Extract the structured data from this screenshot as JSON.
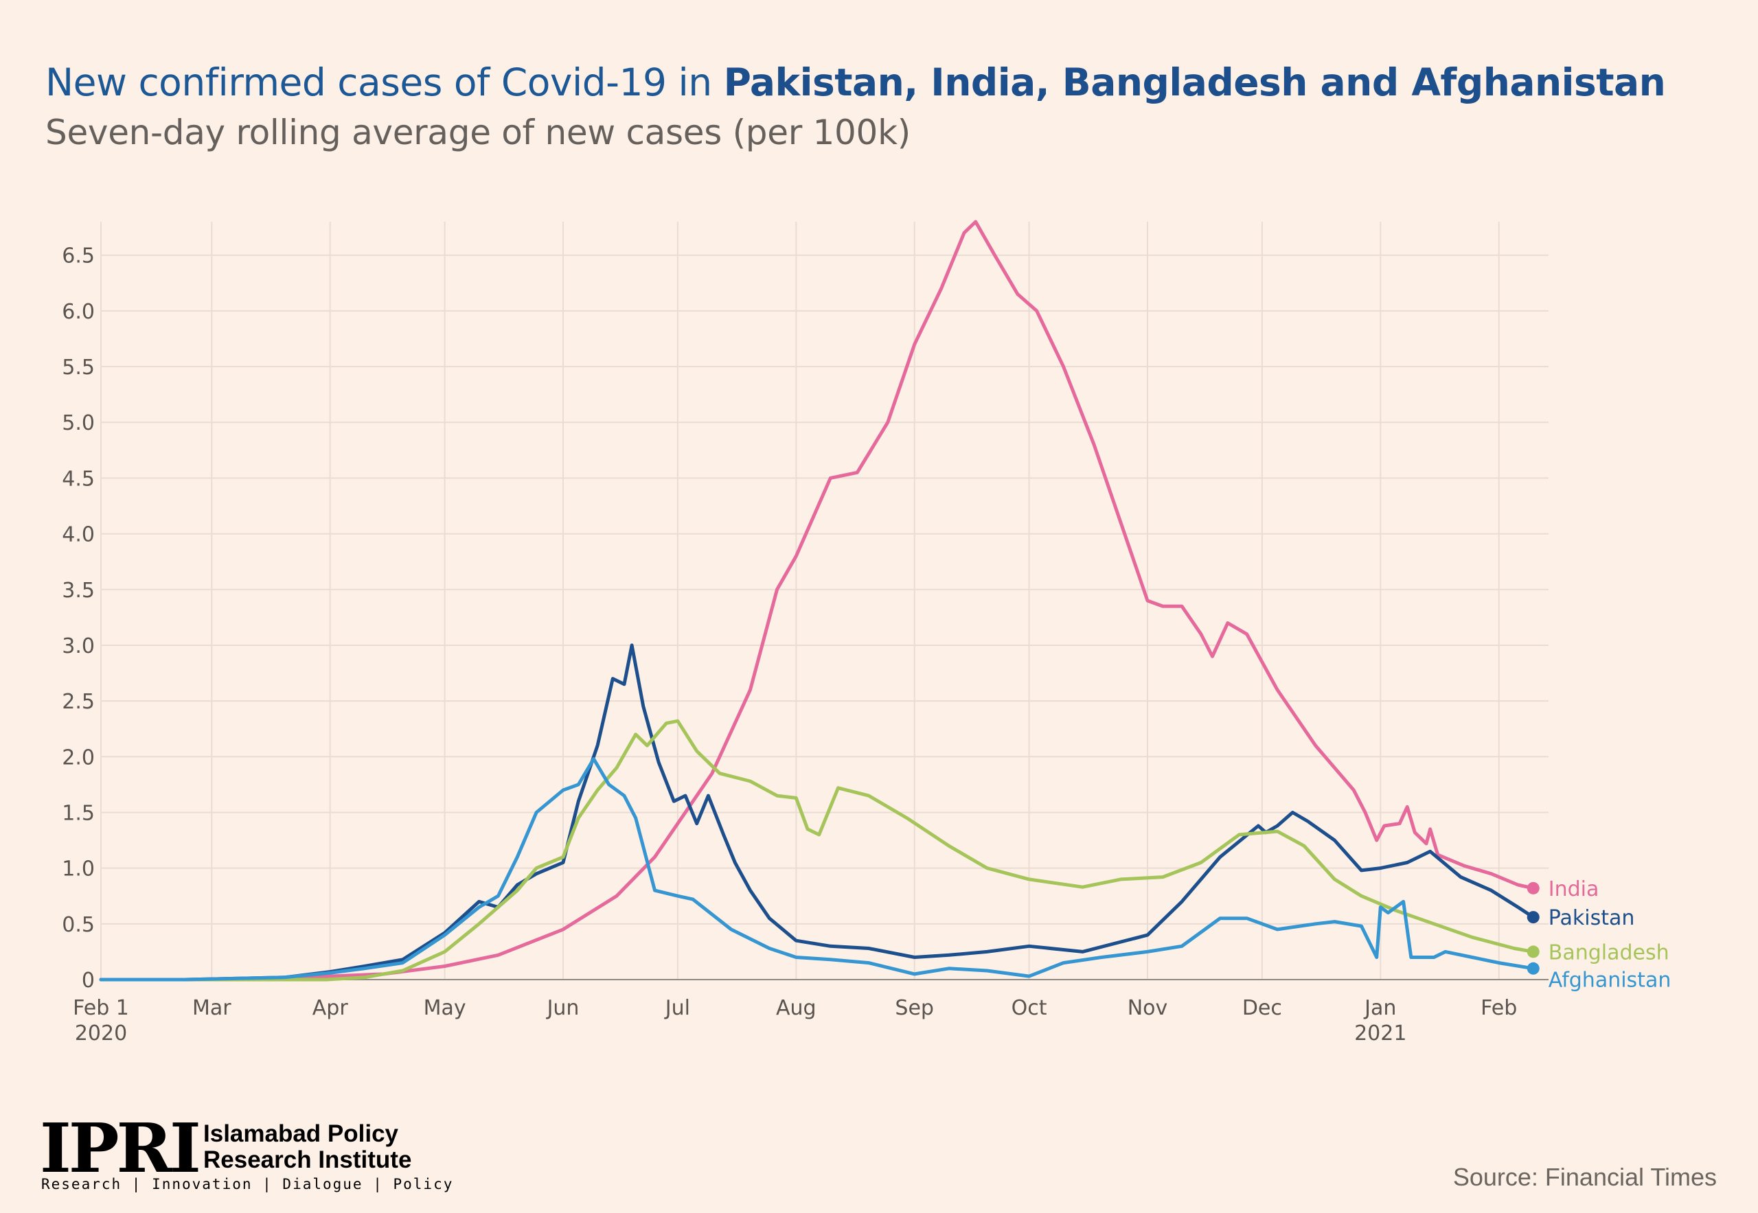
{
  "header": {
    "title_prefix": "New confirmed cases of Covid-19 in ",
    "title_highlight": "Pakistan, India, Bangladesh and Afghanistan",
    "subtitle": "Seven-day rolling average of new cases (per 100k)"
  },
  "footer": {
    "logo_mark": "IPRI",
    "logo_name_line1": "Islamabad Policy",
    "logo_name_line2": "Research Institute",
    "logo_tagline": "Research | Innovation | Dialogue | Policy",
    "source": "Source: Financial Times"
  },
  "chart_data": {
    "type": "line",
    "title": "New confirmed cases of Covid-19 in Pakistan, India, Bangladesh and Afghanistan",
    "subtitle": "Seven-day rolling average of new cases (per 100k)",
    "xlabel": "",
    "ylabel": "",
    "x_start": "2020-02-01",
    "x_end": "2021-02-14",
    "ylim": [
      0,
      6.8
    ],
    "y_ticks": [
      0,
      0.5,
      1.0,
      1.5,
      2.0,
      2.5,
      3.0,
      3.5,
      4.0,
      4.5,
      5.0,
      5.5,
      6.0,
      6.5
    ],
    "y_tick_labels": [
      "0",
      "0.5",
      "1.0",
      "1.5",
      "2.0",
      "2.5",
      "3.0",
      "3.5",
      "4.0",
      "4.5",
      "5.0",
      "5.5",
      "6.0",
      "6.5"
    ],
    "x_ticks": [
      {
        "date": "2020-02-01",
        "label": "Feb 1",
        "sublabel": "2020"
      },
      {
        "date": "2020-03-01",
        "label": "Mar",
        "sublabel": ""
      },
      {
        "date": "2020-04-01",
        "label": "Apr",
        "sublabel": ""
      },
      {
        "date": "2020-05-01",
        "label": "May",
        "sublabel": ""
      },
      {
        "date": "2020-06-01",
        "label": "Jun",
        "sublabel": ""
      },
      {
        "date": "2020-07-01",
        "label": "Jul",
        "sublabel": ""
      },
      {
        "date": "2020-08-01",
        "label": "Aug",
        "sublabel": ""
      },
      {
        "date": "2020-09-01",
        "label": "Sep",
        "sublabel": ""
      },
      {
        "date": "2020-10-01",
        "label": "Oct",
        "sublabel": ""
      },
      {
        "date": "2020-11-01",
        "label": "Nov",
        "sublabel": ""
      },
      {
        "date": "2020-12-01",
        "label": "Dec",
        "sublabel": ""
      },
      {
        "date": "2021-01-01",
        "label": "Jan",
        "sublabel": "2021"
      },
      {
        "date": "2021-02-01",
        "label": "Feb",
        "sublabel": ""
      }
    ],
    "grid": true,
    "legend": "end-of-line labels (right)",
    "series": [
      {
        "name": "India",
        "color": "#e5699a",
        "points": [
          [
            "2020-02-01",
            0
          ],
          [
            "2020-02-23",
            0
          ],
          [
            "2020-03-20",
            0
          ],
          [
            "2020-04-01",
            0.03
          ],
          [
            "2020-04-15",
            0.05
          ],
          [
            "2020-05-01",
            0.12
          ],
          [
            "2020-05-15",
            0.22
          ],
          [
            "2020-06-01",
            0.45
          ],
          [
            "2020-06-15",
            0.75
          ],
          [
            "2020-06-25",
            1.1
          ],
          [
            "2020-07-01",
            1.4
          ],
          [
            "2020-07-10",
            1.85
          ],
          [
            "2020-07-20",
            2.6
          ],
          [
            "2020-07-27",
            3.5
          ],
          [
            "2020-08-01",
            3.8
          ],
          [
            "2020-08-10",
            4.5
          ],
          [
            "2020-08-17",
            4.55
          ],
          [
            "2020-08-25",
            5.0
          ],
          [
            "2020-09-01",
            5.7
          ],
          [
            "2020-09-08",
            6.2
          ],
          [
            "2020-09-14",
            6.7
          ],
          [
            "2020-09-17",
            6.8
          ],
          [
            "2020-09-22",
            6.5
          ],
          [
            "2020-09-28",
            6.15
          ],
          [
            "2020-10-03",
            6.0
          ],
          [
            "2020-10-10",
            5.5
          ],
          [
            "2020-10-18",
            4.8
          ],
          [
            "2020-10-25",
            4.1
          ],
          [
            "2020-11-01",
            3.4
          ],
          [
            "2020-11-05",
            3.35
          ],
          [
            "2020-11-10",
            3.35
          ],
          [
            "2020-11-15",
            3.1
          ],
          [
            "2020-11-18",
            2.9
          ],
          [
            "2020-11-22",
            3.2
          ],
          [
            "2020-11-27",
            3.1
          ],
          [
            "2020-12-05",
            2.6
          ],
          [
            "2020-12-15",
            2.1
          ],
          [
            "2020-12-25",
            1.7
          ],
          [
            "2020-12-28",
            1.5
          ],
          [
            "2020-12-31",
            1.25
          ],
          [
            "2021-01-02",
            1.38
          ],
          [
            "2021-01-06",
            1.4
          ],
          [
            "2021-01-08",
            1.55
          ],
          [
            "2021-01-10",
            1.32
          ],
          [
            "2021-01-13",
            1.22
          ],
          [
            "2021-01-14",
            1.35
          ],
          [
            "2021-01-16",
            1.12
          ],
          [
            "2021-01-23",
            1.02
          ],
          [
            "2021-01-30",
            0.95
          ],
          [
            "2021-02-06",
            0.85
          ],
          [
            "2021-02-10",
            0.82
          ]
        ]
      },
      {
        "name": "Pakistan",
        "color": "#1c4f8c",
        "points": [
          [
            "2020-02-01",
            0
          ],
          [
            "2020-02-23",
            0
          ],
          [
            "2020-03-20",
            0.02
          ],
          [
            "2020-04-01",
            0.07
          ],
          [
            "2020-04-10",
            0.12
          ],
          [
            "2020-04-20",
            0.18
          ],
          [
            "2020-05-01",
            0.42
          ],
          [
            "2020-05-10",
            0.7
          ],
          [
            "2020-05-15",
            0.65
          ],
          [
            "2020-05-20",
            0.85
          ],
          [
            "2020-05-25",
            0.95
          ],
          [
            "2020-06-01",
            1.05
          ],
          [
            "2020-06-05",
            1.6
          ],
          [
            "2020-06-10",
            2.1
          ],
          [
            "2020-06-12",
            2.4
          ],
          [
            "2020-06-14",
            2.7
          ],
          [
            "2020-06-17",
            2.65
          ],
          [
            "2020-06-19",
            3.0
          ],
          [
            "2020-06-22",
            2.45
          ],
          [
            "2020-06-26",
            1.95
          ],
          [
            "2020-06-30",
            1.6
          ],
          [
            "2020-07-03",
            1.65
          ],
          [
            "2020-07-06",
            1.4
          ],
          [
            "2020-07-09",
            1.65
          ],
          [
            "2020-07-13",
            1.3
          ],
          [
            "2020-07-16",
            1.05
          ],
          [
            "2020-07-20",
            0.8
          ],
          [
            "2020-07-25",
            0.55
          ],
          [
            "2020-08-01",
            0.35
          ],
          [
            "2020-08-10",
            0.3
          ],
          [
            "2020-08-20",
            0.28
          ],
          [
            "2020-09-01",
            0.2
          ],
          [
            "2020-09-10",
            0.22
          ],
          [
            "2020-09-20",
            0.25
          ],
          [
            "2020-10-01",
            0.3
          ],
          [
            "2020-10-15",
            0.25
          ],
          [
            "2020-11-01",
            0.4
          ],
          [
            "2020-11-10",
            0.7
          ],
          [
            "2020-11-20",
            1.1
          ],
          [
            "2020-11-30",
            1.38
          ],
          [
            "2020-12-02",
            1.32
          ],
          [
            "2020-12-05",
            1.38
          ],
          [
            "2020-12-09",
            1.5
          ],
          [
            "2020-12-13",
            1.42
          ],
          [
            "2020-12-20",
            1.25
          ],
          [
            "2020-12-27",
            0.98
          ],
          [
            "2021-01-01",
            1.0
          ],
          [
            "2021-01-08",
            1.05
          ],
          [
            "2021-01-14",
            1.15
          ],
          [
            "2021-01-22",
            0.92
          ],
          [
            "2021-01-30",
            0.8
          ],
          [
            "2021-02-06",
            0.65
          ],
          [
            "2021-02-10",
            0.56
          ]
        ]
      },
      {
        "name": "Bangladesh",
        "color": "#a5c45a",
        "points": [
          [
            "2020-02-01",
            0
          ],
          [
            "2020-03-31",
            0
          ],
          [
            "2020-04-10",
            0.02
          ],
          [
            "2020-04-20",
            0.08
          ],
          [
            "2020-05-01",
            0.25
          ],
          [
            "2020-05-10",
            0.5
          ],
          [
            "2020-05-20",
            0.8
          ],
          [
            "2020-05-25",
            1.0
          ],
          [
            "2020-06-01",
            1.1
          ],
          [
            "2020-06-05",
            1.45
          ],
          [
            "2020-06-10",
            1.7
          ],
          [
            "2020-06-15",
            1.9
          ],
          [
            "2020-06-20",
            2.2
          ],
          [
            "2020-06-23",
            2.1
          ],
          [
            "2020-06-28",
            2.3
          ],
          [
            "2020-07-01",
            2.32
          ],
          [
            "2020-07-06",
            2.05
          ],
          [
            "2020-07-12",
            1.85
          ],
          [
            "2020-07-20",
            1.78
          ],
          [
            "2020-07-27",
            1.65
          ],
          [
            "2020-08-01",
            1.63
          ],
          [
            "2020-08-04",
            1.35
          ],
          [
            "2020-08-07",
            1.3
          ],
          [
            "2020-08-12",
            1.72
          ],
          [
            "2020-08-20",
            1.65
          ],
          [
            "2020-08-30",
            1.45
          ],
          [
            "2020-09-10",
            1.2
          ],
          [
            "2020-09-20",
            1.0
          ],
          [
            "2020-10-01",
            0.9
          ],
          [
            "2020-10-15",
            0.83
          ],
          [
            "2020-10-25",
            0.9
          ],
          [
            "2020-11-05",
            0.92
          ],
          [
            "2020-11-15",
            1.05
          ],
          [
            "2020-11-25",
            1.3
          ],
          [
            "2020-12-05",
            1.33
          ],
          [
            "2020-12-12",
            1.2
          ],
          [
            "2020-12-20",
            0.9
          ],
          [
            "2020-12-27",
            0.75
          ],
          [
            "2021-01-05",
            0.62
          ],
          [
            "2021-01-15",
            0.5
          ],
          [
            "2021-01-25",
            0.38
          ],
          [
            "2021-02-05",
            0.28
          ],
          [
            "2021-02-10",
            0.25
          ]
        ]
      },
      {
        "name": "Afghanistan",
        "color": "#3596d2",
        "points": [
          [
            "2020-02-01",
            0
          ],
          [
            "2020-02-23",
            0
          ],
          [
            "2020-03-20",
            0.02
          ],
          [
            "2020-04-01",
            0.06
          ],
          [
            "2020-04-10",
            0.1
          ],
          [
            "2020-04-20",
            0.15
          ],
          [
            "2020-05-01",
            0.4
          ],
          [
            "2020-05-10",
            0.65
          ],
          [
            "2020-05-15",
            0.75
          ],
          [
            "2020-05-20",
            1.1
          ],
          [
            "2020-05-25",
            1.5
          ],
          [
            "2020-06-01",
            1.7
          ],
          [
            "2020-06-05",
            1.75
          ],
          [
            "2020-06-09",
            1.98
          ],
          [
            "2020-06-13",
            1.75
          ],
          [
            "2020-06-17",
            1.65
          ],
          [
            "2020-06-20",
            1.45
          ],
          [
            "2020-06-25",
            0.8
          ],
          [
            "2020-07-01",
            0.75
          ],
          [
            "2020-07-05",
            0.72
          ],
          [
            "2020-07-15",
            0.45
          ],
          [
            "2020-07-25",
            0.28
          ],
          [
            "2020-08-01",
            0.2
          ],
          [
            "2020-08-10",
            0.18
          ],
          [
            "2020-08-20",
            0.15
          ],
          [
            "2020-09-01",
            0.05
          ],
          [
            "2020-09-10",
            0.1
          ],
          [
            "2020-09-20",
            0.08
          ],
          [
            "2020-10-01",
            0.03
          ],
          [
            "2020-10-10",
            0.15
          ],
          [
            "2020-10-20",
            0.2
          ],
          [
            "2020-11-01",
            0.25
          ],
          [
            "2020-11-10",
            0.3
          ],
          [
            "2020-11-20",
            0.55
          ],
          [
            "2020-11-27",
            0.55
          ],
          [
            "2020-12-05",
            0.45
          ],
          [
            "2020-12-15",
            0.5
          ],
          [
            "2020-12-20",
            0.52
          ],
          [
            "2020-12-27",
            0.48
          ],
          [
            "2020-12-31",
            0.2
          ],
          [
            "2021-01-01",
            0.65
          ],
          [
            "2021-01-03",
            0.6
          ],
          [
            "2021-01-07",
            0.7
          ],
          [
            "2021-01-09",
            0.2
          ],
          [
            "2021-01-15",
            0.2
          ],
          [
            "2021-01-18",
            0.25
          ],
          [
            "2021-01-25",
            0.2
          ],
          [
            "2021-02-01",
            0.15
          ],
          [
            "2021-02-10",
            0.1
          ]
        ]
      }
    ]
  }
}
